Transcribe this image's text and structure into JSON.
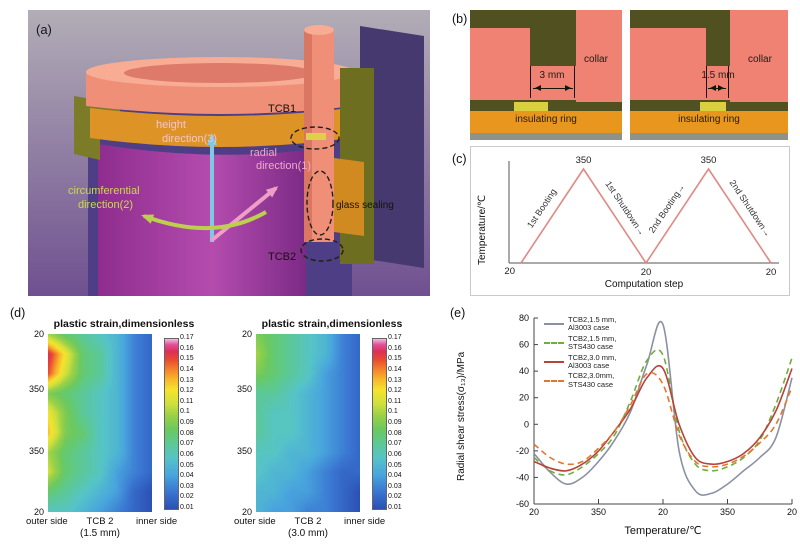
{
  "tags": {
    "a": "(a)",
    "b": "(b)",
    "c": "(c)",
    "d": "(d)",
    "e": "(e)"
  },
  "panel_a": {
    "labels": {
      "height_line1": "height",
      "height_line2": "direction(3)",
      "radial_line1": "radial",
      "radial_line2": "direction(1)",
      "circ_line1": "circumferential",
      "circ_line2": "direction(2)",
      "tcb1": "TCB1",
      "glass_sealing": "glass sealing",
      "tcb2": "TCB2"
    },
    "colors": {
      "collar": "#ef8f78",
      "insulating_ring": "#dd9326",
      "olive": "#7c7c28",
      "height_arrow": "#7fc9e6",
      "radial_arrow": "#ef9ec6",
      "circumferential_arrow": "#bdd04e",
      "cylinder_front": "#a43a9c",
      "cylinder_back": "#4e3e85"
    }
  },
  "panel_b": {
    "left": {
      "collar_label": "collar",
      "gap_label": "3 mm",
      "ring_label": "insulating ring"
    },
    "right": {
      "collar_label": "collar",
      "gap_label": "1.5 mm",
      "ring_label": "insulating ring"
    },
    "colors": {
      "collar": "#ef8272",
      "insulating_ring": "#e8961e",
      "glass_seal": "#dccf3f",
      "background": "#505020"
    }
  },
  "chart_data": [
    {
      "id": "temperature-cycle",
      "type": "line",
      "panel": "c",
      "xlabel": "Computation step",
      "ylabel": "Temperature/℃",
      "x": [
        0,
        1,
        2,
        3,
        4
      ],
      "y": [
        20,
        350,
        20,
        350,
        20
      ],
      "point_labels": [
        "20",
        "350",
        "20",
        "350",
        "20"
      ],
      "segment_labels": [
        "1st Booting",
        "1st Shutdown→",
        "2nd Booting→",
        "2nd Shutdown→"
      ],
      "line_color": "#e08a84",
      "xlim": [
        0,
        4
      ],
      "ylim": [
        20,
        350
      ]
    },
    {
      "id": "plastic-strain-1.5mm",
      "type": "heatmap",
      "title": "plastic strain,dimensionless",
      "caption": "(1.5 mm)",
      "x_labels": [
        "outer side",
        "TCB 2",
        "inner side"
      ],
      "y_ticks": [
        "20",
        "350",
        "350",
        "20"
      ],
      "colorbar_ticks": [
        "0.17",
        "0.16",
        "0.15",
        "0.14",
        "0.13",
        "0.12",
        "0.11",
        "0.1",
        "0.09",
        "0.08",
        "0.07",
        "0.06",
        "0.05",
        "0.04",
        "0.03",
        "0.02",
        "0.01"
      ],
      "vmin": 0.01,
      "vmax": 0.17,
      "colormap": [
        [
          0,
          "#2c51b4"
        ],
        [
          0.1,
          "#3a76d2"
        ],
        [
          0.2,
          "#49a6dd"
        ],
        [
          0.3,
          "#56c4c8"
        ],
        [
          0.4,
          "#5ec98a"
        ],
        [
          0.47,
          "#6cc95e"
        ],
        [
          0.55,
          "#9ad148"
        ],
        [
          0.62,
          "#cfe03c"
        ],
        [
          0.7,
          "#f5e42e"
        ],
        [
          0.77,
          "#f7b32b"
        ],
        [
          0.83,
          "#f37b2c"
        ],
        [
          0.88,
          "#e84b31"
        ],
        [
          0.93,
          "#de2f55"
        ],
        [
          0.97,
          "#e0519c"
        ],
        [
          1,
          "#f2b3d6"
        ]
      ],
      "grid": [
        [
          0.1,
          0.08,
          0.07,
          0.06,
          0.05,
          0.03,
          0.02
        ],
        [
          0.16,
          0.12,
          0.08,
          0.07,
          0.05,
          0.03,
          0.02
        ],
        [
          0.15,
          0.11,
          0.08,
          0.07,
          0.05,
          0.03,
          0.02
        ],
        [
          0.09,
          0.08,
          0.07,
          0.06,
          0.05,
          0.03,
          0.02
        ],
        [
          0.12,
          0.09,
          0.07,
          0.06,
          0.05,
          0.03,
          0.02
        ],
        [
          0.13,
          0.09,
          0.08,
          0.06,
          0.05,
          0.03,
          0.02
        ],
        [
          0.1,
          0.08,
          0.07,
          0.06,
          0.05,
          0.03,
          0.02
        ],
        [
          0.11,
          0.08,
          0.07,
          0.06,
          0.04,
          0.03,
          0.02
        ],
        [
          0.08,
          0.07,
          0.06,
          0.05,
          0.04,
          0.02,
          0.01
        ],
        [
          0.06,
          0.06,
          0.05,
          0.04,
          0.03,
          0.02,
          0.01
        ]
      ]
    },
    {
      "id": "plastic-strain-3.0mm",
      "type": "heatmap",
      "title": "plastic strain,dimensionless",
      "caption": "(3.0 mm)",
      "x_labels": [
        "outer side",
        "TCB 2",
        "inner side"
      ],
      "y_ticks": [
        "20",
        "350",
        "350",
        "20"
      ],
      "colorbar_ticks": [
        "0.17",
        "0.16",
        "0.15",
        "0.14",
        "0.13",
        "0.12",
        "0.11",
        "0.1",
        "0.09",
        "0.08",
        "0.07",
        "0.06",
        "0.05",
        "0.04",
        "0.03",
        "0.02",
        "0.01"
      ],
      "vmin": 0.01,
      "vmax": 0.17,
      "grid": [
        [
          0.09,
          0.08,
          0.07,
          0.06,
          0.05,
          0.03,
          0.02
        ],
        [
          0.1,
          0.08,
          0.07,
          0.06,
          0.05,
          0.03,
          0.02
        ],
        [
          0.09,
          0.08,
          0.07,
          0.06,
          0.04,
          0.03,
          0.02
        ],
        [
          0.07,
          0.07,
          0.06,
          0.05,
          0.04,
          0.03,
          0.02
        ],
        [
          0.07,
          0.06,
          0.06,
          0.05,
          0.04,
          0.03,
          0.02
        ],
        [
          0.07,
          0.06,
          0.06,
          0.05,
          0.04,
          0.03,
          0.02
        ],
        [
          0.06,
          0.06,
          0.05,
          0.05,
          0.04,
          0.03,
          0.02
        ],
        [
          0.06,
          0.05,
          0.05,
          0.04,
          0.03,
          0.02,
          0.02
        ],
        [
          0.05,
          0.05,
          0.04,
          0.04,
          0.03,
          0.02,
          0.01
        ],
        [
          0.05,
          0.04,
          0.04,
          0.03,
          0.03,
          0.02,
          0.01
        ]
      ]
    },
    {
      "id": "radial-shear-stress",
      "type": "line",
      "panel": "e",
      "xlabel": "Temperature/℃",
      "ylabel": "Radial shear stress(σ₁₃)/MPa",
      "x_tick_labels": [
        "20",
        "350",
        "20",
        "350",
        "20"
      ],
      "y_ticks": [
        80,
        60,
        40,
        20,
        0,
        -20,
        -40,
        -60
      ],
      "ylim": [
        -60,
        80
      ],
      "series": [
        {
          "id": "tcb2-1.5mm-al3003",
          "name_line1": "TCB2,1.5 mm,",
          "name_line2": "Al3003 case",
          "color": "#8b90a3",
          "dash": false,
          "values": [
            -22,
            -36,
            -45,
            -40,
            -28,
            -12,
            10,
            45,
            75,
            -20,
            -50,
            -52,
            -45,
            -35,
            -25,
            -10,
            35
          ]
        },
        {
          "id": "tcb2-1.5mm-sts430",
          "name_line1": "TCB2,1.5 mm,",
          "name_line2": "STS430 case",
          "color": "#6fae3d",
          "dash": true,
          "values": [
            -25,
            -35,
            -38,
            -32,
            -22,
            -8,
            18,
            48,
            52,
            -5,
            -30,
            -35,
            -32,
            -25,
            -12,
            15,
            50
          ]
        },
        {
          "id": "tcb2-3.0mm-al3003",
          "name_line1": "TCB2,3.0 mm,",
          "name_line2": "Al3003 case",
          "color": "#b8433c",
          "dash": false,
          "values": [
            -28,
            -33,
            -35,
            -30,
            -20,
            -5,
            12,
            35,
            42,
            0,
            -25,
            -30,
            -28,
            -22,
            -10,
            10,
            42
          ]
        },
        {
          "id": "tcb2-3.0mm-sts430",
          "name_line1": "TCB2,3.0mm,",
          "name_line2": "STS430 case",
          "color": "#e2762f",
          "dash": true,
          "values": [
            -15,
            -25,
            -30,
            -28,
            -18,
            -5,
            15,
            38,
            30,
            -8,
            -28,
            -32,
            -30,
            -24,
            -14,
            0,
            28
          ]
        }
      ]
    }
  ]
}
